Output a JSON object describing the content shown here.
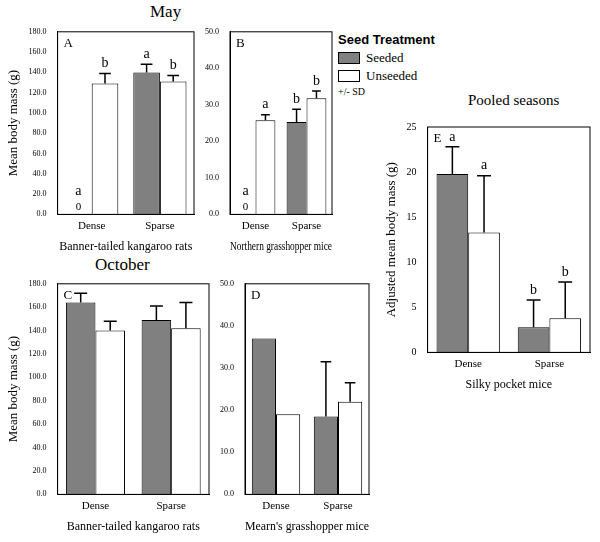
{
  "headings": [
    "May",
    "October",
    "Pooled seasons"
  ],
  "legend": {
    "title": "Seed Treatment",
    "note": "+/- SD"
  },
  "chart_data": [
    {
      "type": "bar",
      "title": "A",
      "categories": [
        "Dense",
        "Sparse"
      ],
      "xlabel": "Banner-tailed kangaroo rats",
      "ylabel": "Mean body mass (g)",
      "ylim": [
        0,
        180
      ],
      "yticks": [
        {
          "value": 0,
          "label": "0.0"
        },
        {
          "value": 20,
          "label": "20.0"
        },
        {
          "value": 40,
          "label": "40.0"
        },
        {
          "value": 60,
          "label": "60.0"
        },
        {
          "value": 80,
          "label": "80.0"
        },
        {
          "value": 100,
          "label": "100.0"
        },
        {
          "value": 120,
          "label": "120.0"
        },
        {
          "value": 140,
          "label": "140.0"
        },
        {
          "value": 160,
          "label": "160.0"
        },
        {
          "value": 180,
          "label": "180.0"
        }
      ],
      "grid": false,
      "series": [
        {
          "name": "Seeded",
          "color": "#808080",
          "values": [
            0,
            140
          ],
          "errors": [
            null,
            8
          ],
          "value_labels": [
            "0",
            null
          ],
          "letters": [
            "a",
            "a"
          ]
        },
        {
          "name": "Unseeded",
          "color": "#ffffff",
          "values": [
            129,
            131
          ],
          "errors": [
            10,
            6
          ],
          "value_labels": [
            null,
            null
          ],
          "letters": [
            "b",
            "b"
          ]
        }
      ]
    },
    {
      "type": "bar",
      "title": "B",
      "categories": [
        "Dense",
        "Sparse"
      ],
      "xlabel": "Northern grasshopper mice",
      "ylim": [
        0,
        50
      ],
      "yticks": [
        {
          "value": 0,
          "label": "0.0"
        },
        {
          "value": 10,
          "label": "10.0"
        },
        {
          "value": 20,
          "label": "20.0"
        },
        {
          "value": 30,
          "label": "30.0"
        },
        {
          "value": 40,
          "label": "40.0"
        },
        {
          "value": 50,
          "label": "50.0"
        }
      ],
      "grid": false,
      "series": [
        {
          "name": "Seeded",
          "color": "#808080",
          "values": [
            0,
            25.3
          ],
          "errors": [
            null,
            3.5
          ],
          "value_labels": [
            "0",
            null
          ],
          "letters": [
            "a",
            "b"
          ]
        },
        {
          "name": "Unseeded",
          "color": "#ffffff",
          "values": [
            25.8,
            31.8
          ],
          "errors": [
            1.5,
            2
          ],
          "value_labels": [
            null,
            null
          ],
          "letters": [
            "a",
            "b"
          ]
        }
      ]
    },
    {
      "type": "bar",
      "title": "C",
      "categories": [
        "Dense",
        "Sparse"
      ],
      "xlabel": "Banner-tailed kangaroo rats",
      "ylabel": "Mean body mass (g)",
      "ylim": [
        0,
        180
      ],
      "yticks": [
        {
          "value": 0,
          "label": "0.0"
        },
        {
          "value": 20,
          "label": "20.0"
        },
        {
          "value": 40,
          "label": "40.0"
        },
        {
          "value": 60,
          "label": "60.0"
        },
        {
          "value": 80,
          "label": "80.0"
        },
        {
          "value": 100,
          "label": "100.0"
        },
        {
          "value": 120,
          "label": "120.0"
        },
        {
          "value": 140,
          "label": "140.0"
        },
        {
          "value": 160,
          "label": "160.0"
        },
        {
          "value": 180,
          "label": "180.0"
        }
      ],
      "grid": false,
      "series": [
        {
          "name": "Seeded",
          "color": "#808080",
          "values": [
            164,
            149
          ],
          "errors": [
            8,
            12
          ]
        },
        {
          "name": "Unseeded",
          "color": "#ffffff",
          "values": [
            140,
            142
          ],
          "errors": [
            8,
            22
          ]
        }
      ]
    },
    {
      "type": "bar",
      "title": "D",
      "categories": [
        "Dense",
        "Sparse"
      ],
      "xlabel": "Mearn's grasshopper mice",
      "ylim": [
        0,
        50
      ],
      "yticks": [
        {
          "value": 0,
          "label": "0.0"
        },
        {
          "value": 10,
          "label": "10.0"
        },
        {
          "value": 20,
          "label": "20.0"
        },
        {
          "value": 30,
          "label": "30.0"
        },
        {
          "value": 40,
          "label": "40.0"
        },
        {
          "value": 50,
          "label": "50.0"
        }
      ],
      "grid": false,
      "series": [
        {
          "name": "Seeded",
          "color": "#808080",
          "values": [
            37,
            18.5
          ],
          "errors": [
            null,
            13
          ]
        },
        {
          "name": "Unseeded",
          "color": "#ffffff",
          "values": [
            19,
            22
          ],
          "errors": [
            null,
            4.5
          ]
        }
      ]
    },
    {
      "type": "bar",
      "title": "E",
      "categories": [
        "Dense",
        "Sparse"
      ],
      "xlabel": "Silky pocket mice",
      "ylabel": "Adjusted mean body mass (g)",
      "ylim": [
        0,
        25
      ],
      "yticks": [
        0,
        5,
        10,
        15,
        20,
        25
      ],
      "grid": false,
      "series": [
        {
          "name": "Seeded",
          "color": "#808080",
          "values": [
            19.8,
            2.8
          ],
          "errors": [
            3,
            3
          ],
          "letters": [
            "a",
            "b"
          ]
        },
        {
          "name": "Unseeded",
          "color": "#ffffff",
          "values": [
            13.3,
            3.8
          ],
          "errors": [
            6.3,
            4
          ],
          "letters": [
            "a",
            "b"
          ]
        }
      ]
    }
  ]
}
